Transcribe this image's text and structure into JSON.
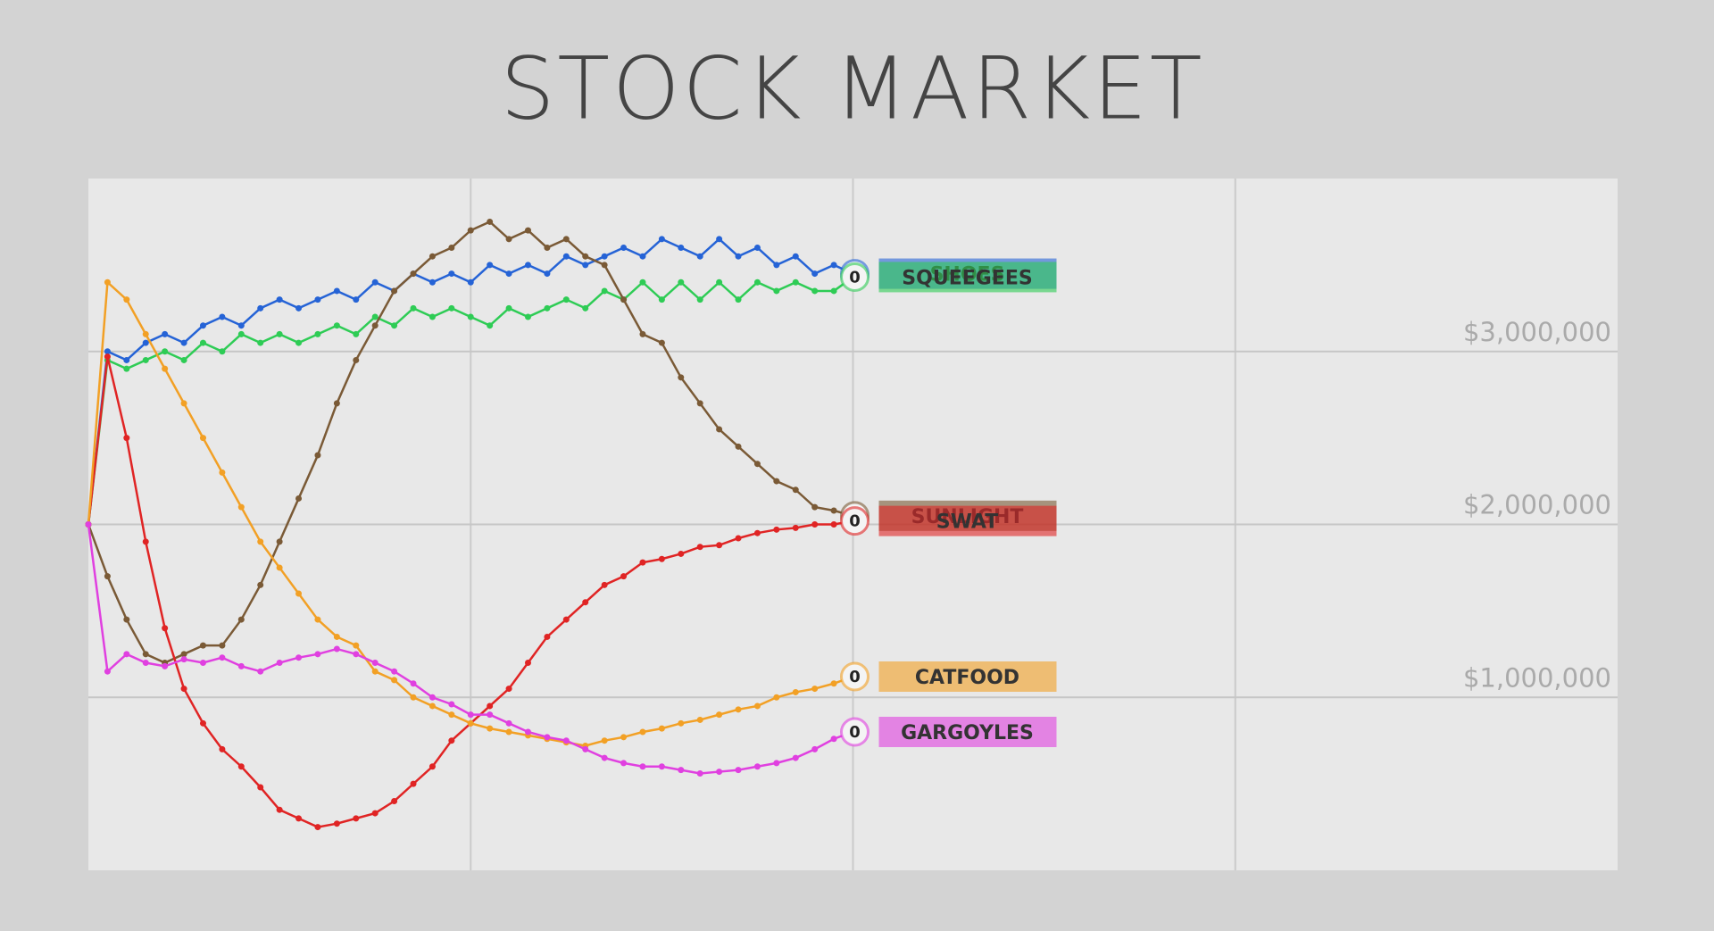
{
  "chart_data": {
    "type": "line",
    "title": "STOCK MARKET",
    "x": [
      0,
      1,
      2,
      3,
      4,
      5,
      6,
      7,
      8,
      9,
      10,
      11,
      12,
      13,
      14,
      15,
      16,
      17,
      18,
      19,
      20,
      21,
      22,
      23,
      24,
      25,
      26,
      27,
      28,
      29,
      30,
      31,
      32,
      33,
      34,
      35,
      36,
      37,
      38,
      39,
      40
    ],
    "xlim": [
      0,
      80
    ],
    "ylim": [
      0,
      4000000
    ],
    "yticks": [
      {
        "value": 1000000,
        "label": "$1,000,000"
      },
      {
        "value": 2000000,
        "label": "$2,000,000"
      },
      {
        "value": 3000000,
        "label": "$3,000,000"
      }
    ],
    "grid": true,
    "series": [
      {
        "name": "SHOES",
        "color": "#2563d6",
        "badge": 0,
        "values": [
          2000000,
          3000000,
          2950000,
          3050000,
          3100000,
          3050000,
          3150000,
          3200000,
          3150000,
          3250000,
          3300000,
          3250000,
          3300000,
          3350000,
          3300000,
          3400000,
          3350000,
          3450000,
          3400000,
          3450000,
          3400000,
          3500000,
          3450000,
          3500000,
          3450000,
          3550000,
          3500000,
          3550000,
          3600000,
          3550000,
          3650000,
          3600000,
          3550000,
          3650000,
          3550000,
          3600000,
          3500000,
          3550000,
          3450000,
          3500000,
          3450000
        ]
      },
      {
        "name": "SQUEEGEES",
        "color": "#2ecc55",
        "badge": 0,
        "values": [
          2000000,
          2950000,
          2900000,
          2950000,
          3000000,
          2950000,
          3050000,
          3000000,
          3100000,
          3050000,
          3100000,
          3050000,
          3100000,
          3150000,
          3100000,
          3200000,
          3150000,
          3250000,
          3200000,
          3250000,
          3200000,
          3150000,
          3250000,
          3200000,
          3250000,
          3300000,
          3250000,
          3350000,
          3300000,
          3400000,
          3300000,
          3400000,
          3300000,
          3400000,
          3300000,
          3400000,
          3350000,
          3400000,
          3350000,
          3350000,
          3430000
        ]
      },
      {
        "name": "SUNLIGHT",
        "color": "#7a5a36",
        "badge": 0,
        "values": [
          2000000,
          1700000,
          1450000,
          1250000,
          1200000,
          1250000,
          1300000,
          1300000,
          1450000,
          1650000,
          1900000,
          2150000,
          2400000,
          2700000,
          2950000,
          3150000,
          3350000,
          3450000,
          3550000,
          3600000,
          3700000,
          3750000,
          3650000,
          3700000,
          3600000,
          3650000,
          3550000,
          3500000,
          3300000,
          3100000,
          3050000,
          2850000,
          2700000,
          2550000,
          2450000,
          2350000,
          2250000,
          2200000,
          2100000,
          2080000,
          2050000
        ]
      },
      {
        "name": "SWAT",
        "color": "#e02424",
        "badge": 0,
        "values": [
          2000000,
          2970000,
          2500000,
          1900000,
          1400000,
          1050000,
          850000,
          700000,
          600000,
          480000,
          350000,
          300000,
          250000,
          270000,
          300000,
          330000,
          400000,
          500000,
          600000,
          750000,
          850000,
          950000,
          1050000,
          1200000,
          1350000,
          1450000,
          1550000,
          1650000,
          1700000,
          1780000,
          1800000,
          1830000,
          1870000,
          1880000,
          1920000,
          1950000,
          1970000,
          1980000,
          2000000,
          2000000,
          2020000
        ]
      },
      {
        "name": "CATFOOD",
        "color": "#f2a025",
        "badge": 0,
        "values": [
          2000000,
          3400000,
          3300000,
          3100000,
          2900000,
          2700000,
          2500000,
          2300000,
          2100000,
          1900000,
          1750000,
          1600000,
          1450000,
          1350000,
          1300000,
          1150000,
          1100000,
          1000000,
          950000,
          900000,
          850000,
          820000,
          800000,
          780000,
          760000,
          740000,
          720000,
          750000,
          770000,
          800000,
          820000,
          850000,
          870000,
          900000,
          930000,
          950000,
          1000000,
          1030000,
          1050000,
          1080000,
          1120000
        ]
      },
      {
        "name": "GARGOYLES",
        "color": "#e040e0",
        "badge": 0,
        "values": [
          2000000,
          1150000,
          1250000,
          1200000,
          1180000,
          1220000,
          1200000,
          1230000,
          1180000,
          1150000,
          1200000,
          1230000,
          1250000,
          1280000,
          1250000,
          1200000,
          1150000,
          1080000,
          1000000,
          960000,
          900000,
          900000,
          850000,
          800000,
          770000,
          750000,
          700000,
          650000,
          620000,
          600000,
          600000,
          580000,
          560000,
          570000,
          580000,
          600000,
          620000,
          650000,
          700000,
          760000,
          800000
        ]
      }
    ]
  }
}
